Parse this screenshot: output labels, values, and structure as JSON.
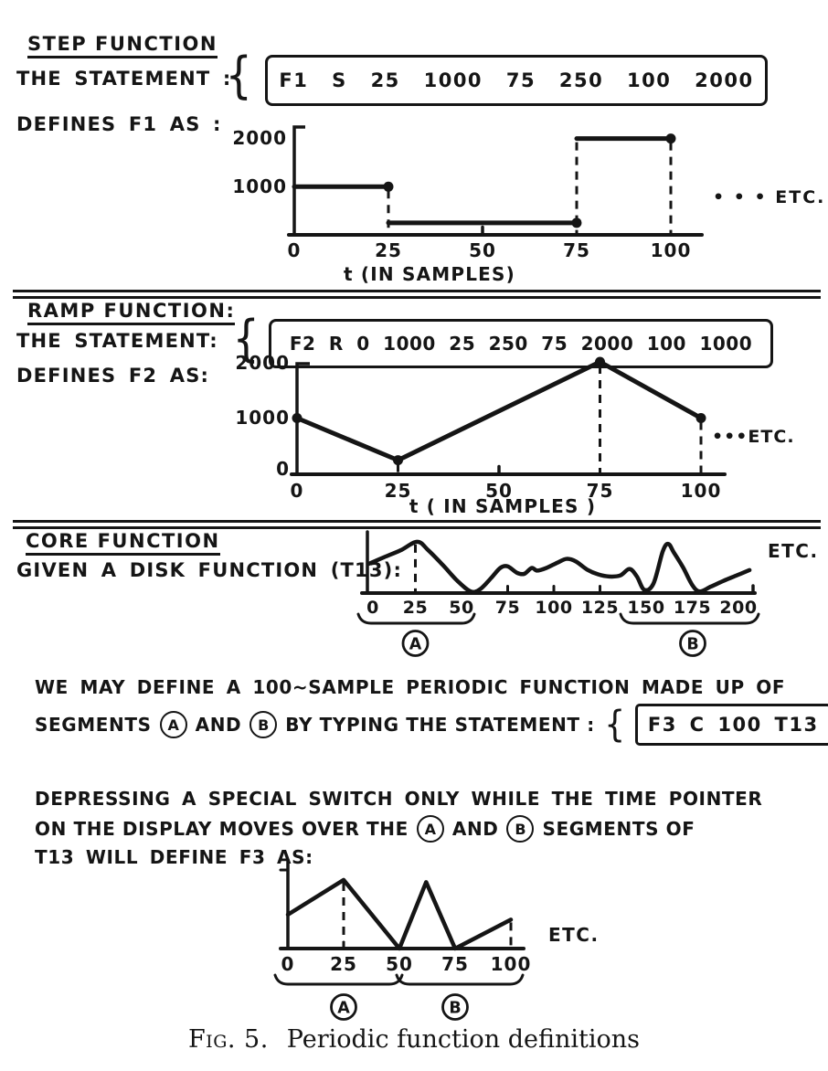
{
  "page": {
    "background": "#ffffff",
    "ink": "#151515"
  },
  "sections": {
    "step": {
      "heading": "STEP FUNCTION",
      "statement_label": "THE STATEMENT :",
      "brace": "{",
      "statement": "F1 S 25 1000 75 250 100 2000",
      "defines_label": "DEFINES F1 AS :"
    },
    "ramp": {
      "heading": "RAMP FUNCTION:",
      "statement_label": "THE STATEMENT:",
      "brace": "{",
      "statement": "F2 R 0 1000 25 250 75 2000 100 1000",
      "defines_label": "DEFINES F2 AS:"
    },
    "core": {
      "heading": "CORE FUNCTION",
      "given_label": "GIVEN A DISK FUNCTION (T13):"
    },
    "para1": {
      "line1": "WE MAY DEFINE A 100~SAMPLE PERIODIC FUNCTION MADE UP OF",
      "segments_word": "SEGMENTS",
      "a": "A",
      "and_word": "AND",
      "b": "B",
      "rest": "BY TYPING THE STATEMENT :",
      "brace": "{",
      "statement": "F3 C 100 T13"
    },
    "para2": {
      "line1": "DEPRESSING A SPECIAL SWITCH ONLY WHILE THE TIME POINTER",
      "line2_pre": "ON THE DISPLAY MOVES OVER THE",
      "a": "A",
      "and_word": "AND",
      "b": "B",
      "line2_post": "SEGMENTS OF",
      "line3": "T13 WILL DEFINE F3 AS:"
    },
    "caption": {
      "prefix": "Fig. 5.",
      "text": "Periodic function definitions"
    }
  },
  "chart_data": [
    {
      "id": "f1_step",
      "type": "step",
      "name": "F1",
      "statement": "F1 S 25 1000 75 250 100 2000",
      "segments": [
        {
          "t_start": 0,
          "t_end": 25,
          "value": 1000
        },
        {
          "t_start": 25,
          "t_end": 75,
          "value": 250
        },
        {
          "t_start": 75,
          "t_end": 100,
          "value": 2000
        }
      ],
      "x_ticks": [
        0,
        25,
        50,
        75,
        100
      ],
      "axis_ticks": [
        50
      ],
      "y_ticks": [
        2000,
        1000
      ],
      "dashed": [
        {
          "t": 25,
          "from": 1000
        },
        {
          "t": 75,
          "from": 2000
        },
        {
          "t": 100,
          "from": 2000
        }
      ],
      "xlim": [
        0,
        100
      ],
      "ylim": [
        0,
        2000
      ],
      "xlabel": "t (IN SAMPLES)",
      "etc": "• • • ETC."
    },
    {
      "id": "f2_ramp",
      "type": "line",
      "name": "F2",
      "statement": "F2 R 0 1000 25 250 75 2000 100 1000",
      "x": [
        0,
        25,
        75,
        100
      ],
      "y": [
        1000,
        250,
        2000,
        1000
      ],
      "x_ticks": [
        0,
        25,
        50,
        75,
        100
      ],
      "axis_ticks": [
        50
      ],
      "y_ticks": [
        2000,
        1000,
        0
      ],
      "dashed": [
        {
          "t": 25,
          "from": 250
        },
        {
          "t": 75,
          "from": 2000
        },
        {
          "t": 100,
          "from": 1000
        }
      ],
      "xlim": [
        0,
        100
      ],
      "ylim": [
        0,
        2000
      ],
      "xlabel": "t ( IN SAMPLES )",
      "etc": "•••ETC."
    },
    {
      "id": "t13_core",
      "type": "line",
      "name": "T13",
      "smooth": true,
      "ylim_note": "relative amplitude 0-100, unlabeled axis",
      "points": [
        [
          0,
          55
        ],
        [
          8,
          67
        ],
        [
          17,
          80
        ],
        [
          26,
          96
        ],
        [
          32,
          80
        ],
        [
          40,
          52
        ],
        [
          48,
          22
        ],
        [
          55,
          3
        ],
        [
          60,
          7
        ],
        [
          66,
          28
        ],
        [
          71,
          47
        ],
        [
          75,
          50
        ],
        [
          80,
          38
        ],
        [
          84,
          36
        ],
        [
          88,
          47
        ],
        [
          91,
          42
        ],
        [
          96,
          47
        ],
        [
          102,
          57
        ],
        [
          107,
          64
        ],
        [
          112,
          59
        ],
        [
          118,
          44
        ],
        [
          124,
          35
        ],
        [
          130,
          31
        ],
        [
          136,
          33
        ],
        [
          141,
          45
        ],
        [
          145,
          31
        ],
        [
          149,
          6
        ],
        [
          154,
          18
        ],
        [
          159,
          78
        ],
        [
          162,
          92
        ],
        [
          165,
          76
        ],
        [
          170,
          48
        ],
        [
          175,
          15
        ],
        [
          179,
          3
        ],
        [
          185,
          12
        ],
        [
          192,
          23
        ],
        [
          199,
          33
        ],
        [
          206,
          43
        ]
      ],
      "x_ticks": [
        0,
        25,
        50,
        75,
        100,
        125,
        150,
        175,
        200
      ],
      "axis_ticks": [
        75,
        100,
        125
      ],
      "dashed": [
        {
          "t": 25,
          "from": 96
        }
      ],
      "brackets": [
        {
          "label": "A",
          "t_start": 0,
          "t_end": 50
        },
        {
          "label": "B",
          "t_start": 150,
          "t_end": 200
        }
      ],
      "etc": "ETC."
    },
    {
      "id": "f3_periodic",
      "type": "line",
      "name": "F3",
      "statement": "F3 C 100 T13",
      "ylim_note": "relative amplitude 0-100, unlabeled axis",
      "points": [
        [
          0,
          47
        ],
        [
          25,
          95
        ],
        [
          50,
          0
        ],
        [
          62,
          92
        ],
        [
          75,
          0
        ],
        [
          100,
          40
        ]
      ],
      "x_ticks": [
        0,
        25,
        50,
        75,
        100
      ],
      "axis_ticks": [
        25
      ],
      "dashed": [
        {
          "t": 25,
          "from": 95
        },
        {
          "t": 100,
          "from": 40
        }
      ],
      "brackets": [
        {
          "label": "A",
          "t_start": 0,
          "t_end": 50
        },
        {
          "label": "B",
          "t_start": 50,
          "t_end": 100
        }
      ],
      "etc": "ETC."
    }
  ]
}
